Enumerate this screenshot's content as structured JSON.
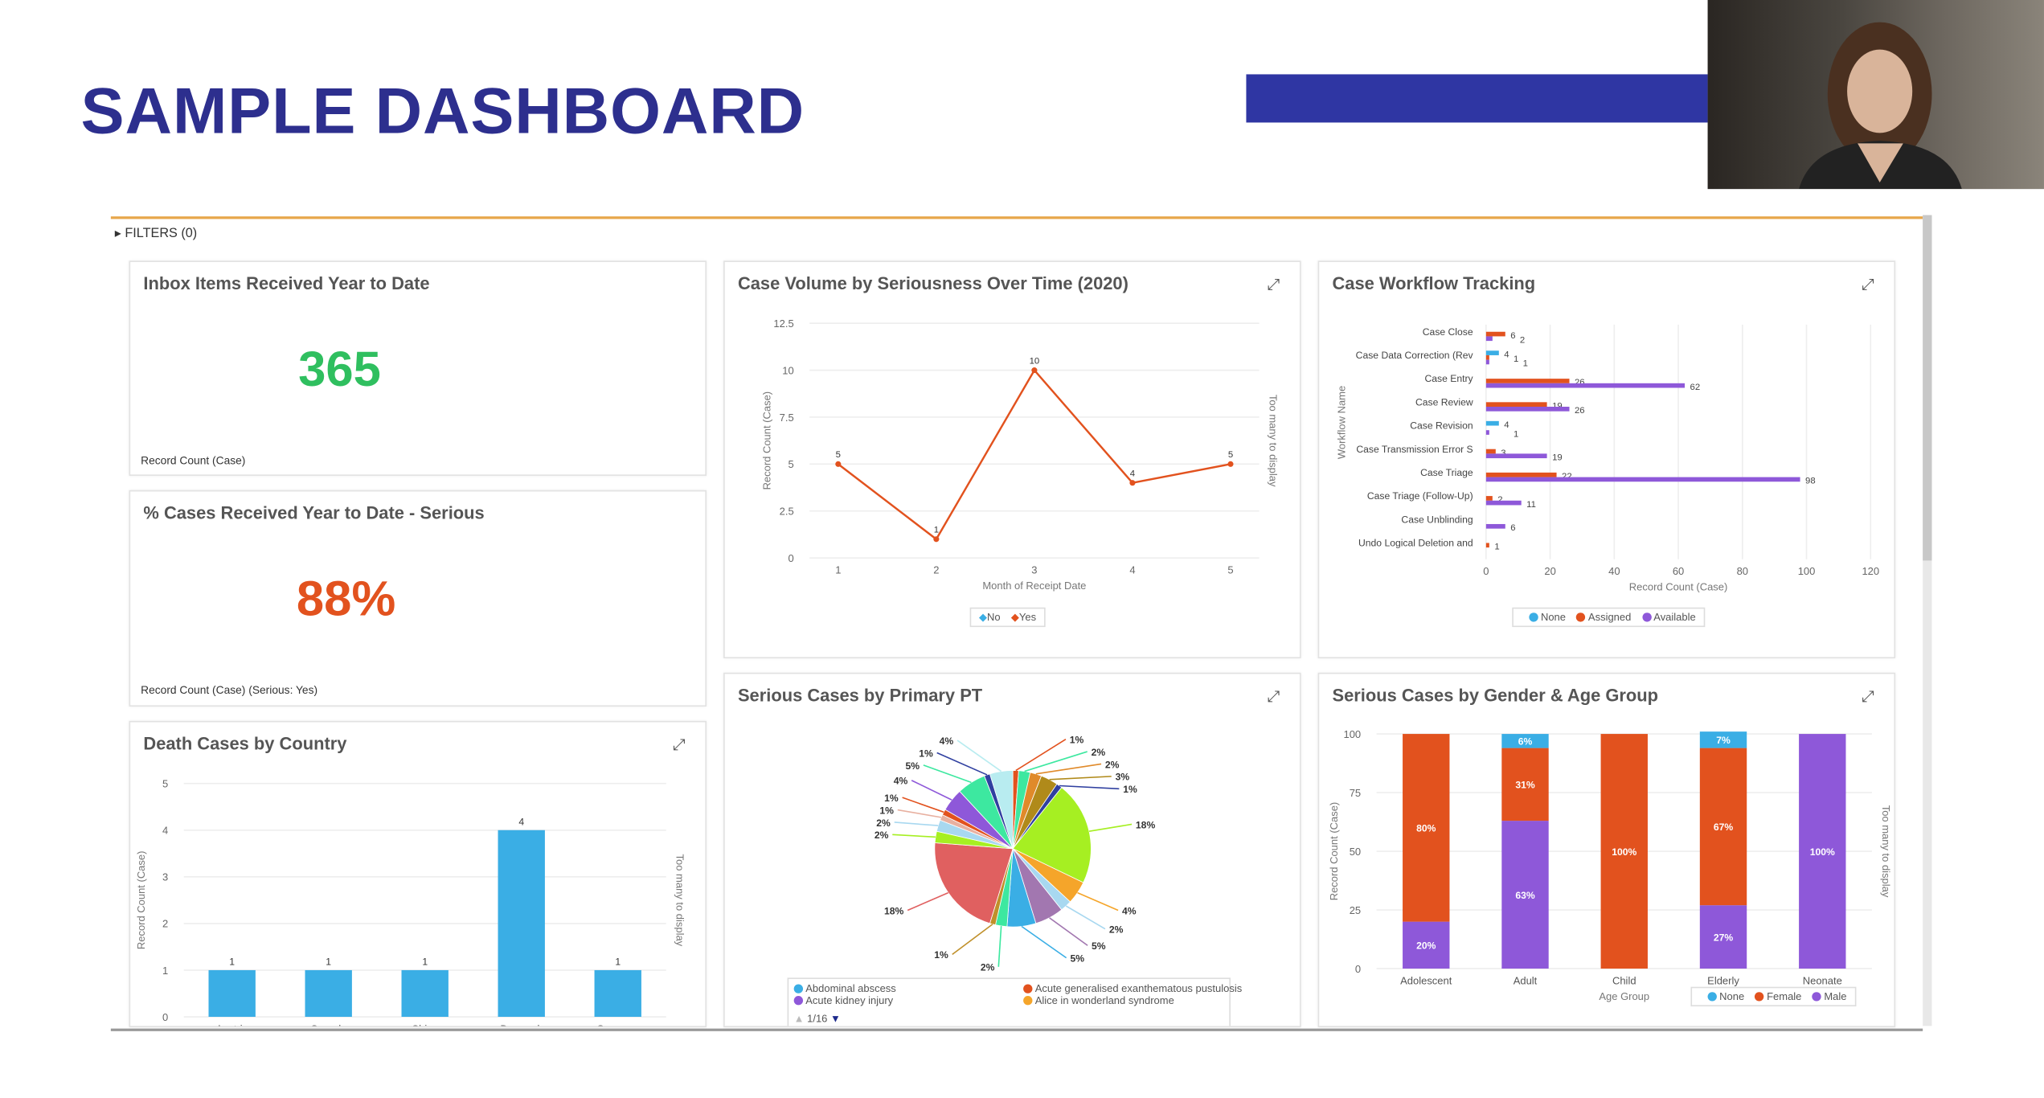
{
  "header": {
    "title": "SAMPLE DASHBOARD"
  },
  "filters": {
    "label": "FILTERS (0)"
  },
  "colors": {
    "title": "#2d2f8e",
    "accent_bar": "#2f36a3",
    "none": "#3aaee5",
    "assigned": "#e2521e",
    "available": "#8e58d9",
    "kpi_green": "#2fbf5f",
    "kpi_red": "#e2521e"
  },
  "kpi1": {
    "title": "Inbox Items Received Year to Date",
    "value": "365",
    "label": "Record Count (Case)"
  },
  "kpi2": {
    "title": "% Cases Received Year to Date - Serious",
    "value": "88%",
    "label": "Record Count (Case)  (Serious: Yes)"
  },
  "chart_data": [
    {
      "id": "volume",
      "type": "line",
      "title": "Case Volume by Seriousness Over Time (2020)",
      "xlabel": "Month of Receipt Date",
      "ylabel": "Record Count (Case)",
      "side_note": "Too many to display",
      "categories": [
        "1",
        "2",
        "3",
        "4",
        "5"
      ],
      "ylim": [
        0,
        12.5
      ],
      "yticks": [
        "0",
        "2.5",
        "5",
        "7.5",
        "10",
        "12.5"
      ],
      "series": [
        {
          "name": "Yes",
          "color": "#e2521e",
          "values": [
            5,
            1,
            10,
            4,
            5
          ]
        }
      ],
      "legend": [
        "No",
        "Yes"
      ]
    },
    {
      "id": "workflow",
      "type": "bar",
      "orientation": "horizontal",
      "title": "Case Workflow Tracking",
      "xlabel": "Record Count (Case)",
      "ylabel": "Workflow Name",
      "xlim": [
        0,
        120
      ],
      "xticks": [
        "0",
        "20",
        "40",
        "60",
        "80",
        "100",
        "120"
      ],
      "categories": [
        "Case Close",
        "Case Data Correction (Rev",
        "Case Entry",
        "Case Review",
        "Case Revision",
        "Case Transmission Error S",
        "Case Triage",
        "Case Triage (Follow-Up)",
        "Case Unblinding",
        "Undo Logical Deletion and"
      ],
      "series": [
        {
          "name": "None",
          "values": [
            0,
            4,
            0,
            0,
            4,
            0,
            0,
            0,
            0,
            0
          ]
        },
        {
          "name": "Assigned",
          "values": [
            6,
            1,
            26,
            19,
            0,
            3,
            22,
            2,
            0,
            1
          ]
        },
        {
          "name": "Available",
          "values": [
            2,
            1,
            62,
            26,
            1,
            19,
            98,
            11,
            6,
            0
          ]
        }
      ]
    },
    {
      "id": "pt",
      "type": "pie",
      "title": "Serious Cases by Primary PT",
      "slices": [
        {
          "label": "1%",
          "value": 1,
          "color": "#e2521e"
        },
        {
          "label": "2%",
          "value": 2,
          "color": "#3de8a0"
        },
        {
          "label": "2%",
          "value": 2,
          "color": "#e08a2a"
        },
        {
          "label": "3%",
          "value": 3,
          "color": "#b08a1a"
        },
        {
          "label": "1%",
          "value": 1,
          "color": "#3040a0"
        },
        {
          "label": "18%",
          "value": 18,
          "color": "#a6ef22"
        },
        {
          "label": "4%",
          "value": 4,
          "color": "#f5a52a"
        },
        {
          "label": "2%",
          "value": 2,
          "color": "#a8d8f0"
        },
        {
          "label": "5%",
          "value": 5,
          "color": "#a277b0"
        },
        {
          "label": "5%",
          "value": 5,
          "color": "#3aaee5"
        },
        {
          "label": "2%",
          "value": 2,
          "color": "#3de8a0"
        },
        {
          "label": "1%",
          "value": 1,
          "color": "#c0902a"
        },
        {
          "label": "18%",
          "value": 18,
          "color": "#e06060"
        },
        {
          "label": "2%",
          "value": 2,
          "color": "#a6ef22"
        },
        {
          "label": "2%",
          "value": 2,
          "color": "#a8d8f0"
        },
        {
          "label": "1%",
          "value": 1,
          "color": "#e8b0a0"
        },
        {
          "label": "1%",
          "value": 1,
          "color": "#e2521e"
        },
        {
          "label": "4%",
          "value": 4,
          "color": "#8e58d9"
        },
        {
          "label": "5%",
          "value": 5,
          "color": "#3de8a0"
        },
        {
          "label": "1%",
          "value": 1,
          "color": "#3040a0"
        },
        {
          "label": "4%",
          "value": 4,
          "color": "#b8ecf0"
        }
      ],
      "legend": [
        {
          "label": "Abdominal abscess",
          "color": "#3aaee5"
        },
        {
          "label": "Acute generalised exanthematous pustulosis",
          "color": "#e2521e"
        },
        {
          "label": "Acute kidney injury",
          "color": "#8e58d9"
        },
        {
          "label": "Alice in wonderland syndrome",
          "color": "#f5a52a"
        }
      ],
      "legend_page": "1/16"
    },
    {
      "id": "gender",
      "type": "bar",
      "stacked": true,
      "title": "Serious Cases by Gender & Age Group",
      "xlabel": "Age Group",
      "ylabel": "Record Count (Case)",
      "side_note": "Too many to display",
      "ylim": [
        0,
        100
      ],
      "yticks": [
        "0",
        "25",
        "50",
        "75",
        "100"
      ],
      "categories": [
        "Adolescent",
        "Adult",
        "Child",
        "Elderly",
        "Neonate"
      ],
      "series": [
        {
          "name": "Male",
          "values": [
            20,
            63,
            0,
            27,
            100
          ]
        },
        {
          "name": "Female",
          "values": [
            80,
            31,
            100,
            67,
            0
          ]
        },
        {
          "name": "None",
          "values": [
            0,
            6,
            0,
            7,
            0
          ]
        }
      ],
      "legend": [
        "None",
        "Female",
        "Male"
      ]
    },
    {
      "id": "death",
      "type": "bar",
      "title": "Death Cases by Country",
      "ylabel": "Record Count (Case)",
      "side_note": "Too many to display",
      "ylim": [
        0,
        5
      ],
      "yticks": [
        "0",
        "1",
        "2",
        "3",
        "4",
        "5"
      ],
      "categories": [
        "Austria",
        "Canada",
        "China",
        "Denmark",
        "Germany"
      ],
      "values": [
        1,
        1,
        1,
        4,
        1
      ]
    }
  ]
}
